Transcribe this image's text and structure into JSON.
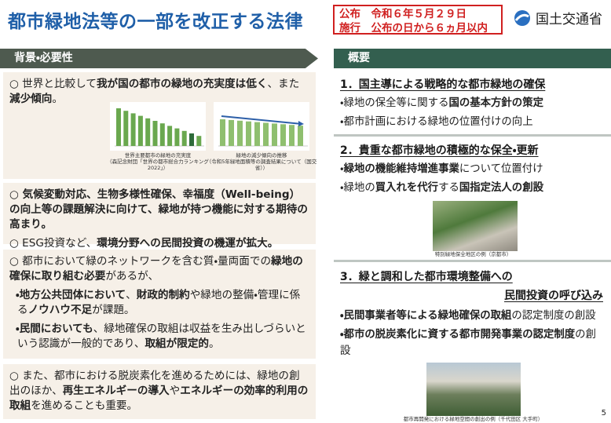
{
  "header": {
    "title": "都市緑地法等の一部を改正する法律",
    "promulgation": "公布　令和６年５月２９日",
    "enforcement": "施行　公布の日から６ヵ月以内",
    "ministry": "国土交通省"
  },
  "left": {
    "heading": "背景・必要性",
    "blocks": [
      {
        "paragraphs": [
          {
            "parts": [
              {
                "text": "○ 世界と比較して"
              },
              {
                "text": "我が国の都市の緑地の充実度は低く",
                "bold": true
              },
              {
                "text": "、また"
              },
              {
                "text": "減少傾向",
                "bold": true
              },
              {
                "text": "。"
              }
            ]
          }
        ],
        "captions": [
          "世界主要都市の緑地の充実度",
          "（森記念財団「世界の都市総合力ランキング2022」）",
          "緑地の減少傾向の推移",
          "（令和5年緑地面積等の調査結果について（国交省））"
        ]
      },
      {
        "paragraphs": [
          {
            "parts": [
              {
                "text": "○ 気候変動対応、生物多様性確保、幸福度（Well-being）の向上等の課題解決に向けて、緑地が持つ機能に対する期待の高まり。",
                "bold": true
              }
            ]
          },
          {
            "parts": [
              {
                "text": "○ ESG投資など、"
              },
              {
                "text": "環境分野への民間投資の機運が拡大。",
                "bold": true
              }
            ]
          }
        ]
      },
      {
        "paragraphs": [
          {
            "parts": [
              {
                "text": "○ 都市において緑のネットワークを含む質・量両面での"
              },
              {
                "text": "緑地の確保に取り組む必要",
                "bold": true
              },
              {
                "text": "があるが、"
              }
            ]
          },
          {
            "parts": [
              {
                "text": "・地方公共団体において",
                "bold": true
              },
              {
                "text": "、"
              },
              {
                "text": "財政的制約",
                "bold": true
              },
              {
                "text": "や緑地の整備・管理に係る"
              },
              {
                "text": "ノウハウ不足",
                "bold": true
              },
              {
                "text": "が課題。"
              }
            ]
          },
          {
            "parts": [
              {
                "text": "・民間においても",
                "bold": true
              },
              {
                "text": "、緑地確保の取組は収益を生み出しづらいという認識が一般的であり、"
              },
              {
                "text": "取組が限定的",
                "bold": true
              },
              {
                "text": "。"
              }
            ]
          }
        ]
      },
      {
        "paragraphs": [
          {
            "parts": [
              {
                "text": "○ また、都市における脱炭素化を進めるためには、緑地の創出のほか、"
              },
              {
                "text": "再生エネルギーの導入",
                "bold": true
              },
              {
                "text": "や"
              },
              {
                "text": "エネルギーの効率的利用の取組",
                "bold": true
              },
              {
                "text": "を進めることも重要。"
              }
            ]
          }
        ]
      }
    ]
  },
  "right": {
    "heading": "概要",
    "sections": [
      {
        "title": [
          "1．国主導による戦略的な都市緑地の確保"
        ],
        "items": [
          {
            "parts": [
              {
                "text": "・緑地の保全等に関する"
              },
              {
                "text": "国の基本方針の策定",
                "bold": true
              }
            ]
          },
          {
            "parts": [
              {
                "text": "・都市計画における緑地の位置付けの向上"
              }
            ]
          }
        ]
      },
      {
        "title": [
          "2．貴重な都市緑地の積極的な保全・更新"
        ],
        "items": [
          {
            "parts": [
              {
                "text": "・"
              },
              {
                "text": "緑地の機能維持増進事業",
                "bold": true
              },
              {
                "text": "について位置付け"
              }
            ]
          },
          {
            "parts": [
              {
                "text": "・緑地の"
              },
              {
                "text": "買入れを代行",
                "bold": true
              },
              {
                "text": "する"
              },
              {
                "text": "国指定法人の創設",
                "bold": true
              }
            ]
          }
        ],
        "caption": "特別緑地保全地区の例（京都市）"
      },
      {
        "title": [
          "3．緑と調和した都市環境整備への",
          "民間投資の呼び込み"
        ],
        "items": [
          {
            "parts": [
              {
                "text": "・民間事業者等による緑地確保の取組",
                "bold": true
              },
              {
                "text": "の認定制度の創設"
              }
            ]
          },
          {
            "parts": [
              {
                "text": "・都市の脱炭素化に資する都市開発事業の認定制度",
                "bold": true
              },
              {
                "text": "の創設"
              }
            ]
          }
        ],
        "caption": "都市再開発における緑地空間の創出の例（千代田区 大手町）"
      }
    ]
  },
  "page_number": "5"
}
